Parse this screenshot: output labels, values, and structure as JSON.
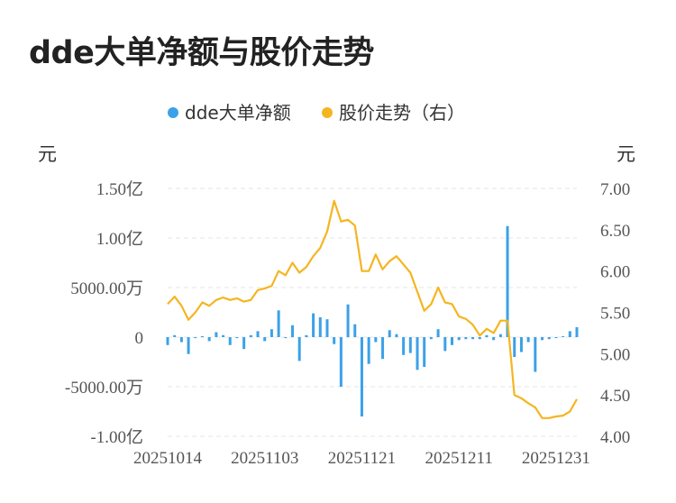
{
  "title": "dde大单净额与股价走势",
  "chart_data": {
    "type": "bar+line",
    "title": "dde大单净额与股价走势",
    "legend": {
      "position": "top",
      "items": [
        {
          "label": "dde大单净额",
          "color": "#3ba1e8"
        },
        {
          "label": "股价走势（右）",
          "color": "#f5b521"
        }
      ]
    },
    "left_axis": {
      "unit": "元",
      "range": [
        -100000000,
        150000000
      ],
      "ticks": [
        {
          "value": 150000000,
          "label": "1.50亿"
        },
        {
          "value": 100000000,
          "label": "1.00亿"
        },
        {
          "value": 50000000,
          "label": "5000.00万"
        },
        {
          "value": 0,
          "label": "0"
        },
        {
          "value": -50000000,
          "label": "-5000.00万"
        },
        {
          "value": -100000000,
          "label": "-1.00亿"
        }
      ]
    },
    "right_axis": {
      "unit": "元",
      "range": [
        4.0,
        7.0
      ],
      "ticks": [
        {
          "value": 7.0,
          "label": "7.00"
        },
        {
          "value": 6.5,
          "label": "6.50"
        },
        {
          "value": 6.0,
          "label": "6.00"
        },
        {
          "value": 5.5,
          "label": "5.50"
        },
        {
          "value": 5.0,
          "label": "5.00"
        },
        {
          "value": 4.5,
          "label": "4.50"
        },
        {
          "value": 4.0,
          "label": "4.00"
        }
      ]
    },
    "x_tick_labels": [
      {
        "index": 0,
        "label": "20251014"
      },
      {
        "index": 14,
        "label": "20251103"
      },
      {
        "index": 28,
        "label": "20251121"
      },
      {
        "index": 42,
        "label": "20251211"
      },
      {
        "index": 56,
        "label": "20251231"
      }
    ],
    "grid": true,
    "series": [
      {
        "name": "dde大单净额",
        "type": "bar",
        "axis": "left",
        "values": [
          -8000000,
          2000000,
          -5000000,
          -17000000,
          -1000000,
          1000000,
          -4000000,
          5000000,
          2000000,
          -8000000,
          -1000000,
          -12000000,
          2000000,
          6000000,
          -4000000,
          8000000,
          27000000,
          -1000000,
          12000000,
          -24000000,
          2000000,
          24000000,
          20000000,
          18000000,
          -7000000,
          -50000000,
          33000000,
          13000000,
          -80000000,
          -27000000,
          -5000000,
          -22000000,
          7000000,
          3000000,
          -18000000,
          -16000000,
          -33000000,
          -30000000,
          -2000000,
          8000000,
          -14000000,
          -8000000,
          -3000000,
          -2000000,
          -2000000,
          -2000000,
          2000000,
          -3000000,
          3000000,
          112000000,
          -20000000,
          -15000000,
          -5000000,
          -35000000,
          -3000000,
          -2000000,
          -1000000,
          1000000,
          6000000,
          10000000
        ]
      },
      {
        "name": "股价走势（右）",
        "type": "line",
        "axis": "right",
        "values": [
          5.6,
          5.69,
          5.58,
          5.41,
          5.5,
          5.62,
          5.58,
          5.65,
          5.68,
          5.65,
          5.67,
          5.63,
          5.65,
          5.77,
          5.79,
          5.82,
          6.0,
          5.95,
          6.1,
          5.98,
          6.05,
          6.18,
          6.28,
          6.48,
          6.85,
          6.6,
          6.62,
          6.55,
          6.0,
          6.0,
          6.2,
          6.02,
          6.12,
          6.18,
          6.08,
          5.98,
          5.75,
          5.52,
          5.6,
          5.8,
          5.62,
          5.6,
          5.45,
          5.42,
          5.35,
          5.22,
          5.3,
          5.25,
          5.4,
          5.4,
          4.5,
          4.46,
          4.4,
          4.35,
          4.22,
          4.22,
          4.24,
          4.25,
          4.3,
          4.45
        ]
      }
    ]
  }
}
